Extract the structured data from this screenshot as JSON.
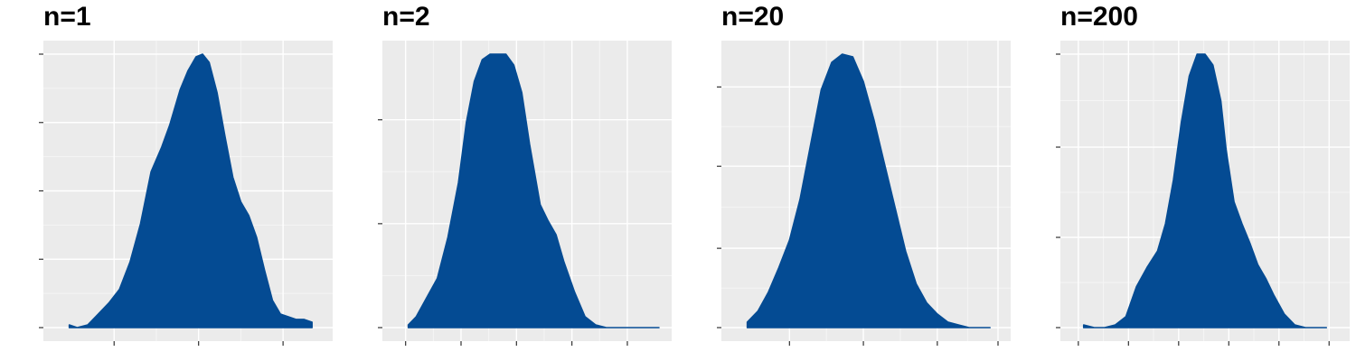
{
  "colors": {
    "fill": "#044b93",
    "panel_background": "#ebebeb",
    "grid_major": "#ffffff",
    "grid_minor": "#f5f5f5",
    "tick": "#333333"
  },
  "chart_data": [
    {
      "type": "area",
      "title": "n=1",
      "tick_labels_printed": false,
      "grid": true,
      "xlim": [
        0,
        1
      ],
      "ylim": [
        0,
        1
      ],
      "x_ticks": [
        0.22,
        0.54,
        0.86
      ],
      "y_ticks": [
        0.0,
        0.25,
        0.5,
        0.75,
        1.0
      ],
      "x": [
        0.05,
        0.08,
        0.12,
        0.16,
        0.2,
        0.24,
        0.28,
        0.32,
        0.36,
        0.4,
        0.43,
        0.47,
        0.5,
        0.53,
        0.555,
        0.58,
        0.61,
        0.64,
        0.67,
        0.7,
        0.73,
        0.76,
        0.79,
        0.82,
        0.85,
        0.88,
        0.91,
        0.94,
        0.97
      ],
      "y": [
        0.01,
        0.0,
        0.01,
        0.05,
        0.09,
        0.14,
        0.24,
        0.38,
        0.57,
        0.66,
        0.74,
        0.87,
        0.94,
        0.99,
        1.0,
        0.97,
        0.86,
        0.7,
        0.55,
        0.46,
        0.41,
        0.33,
        0.21,
        0.1,
        0.05,
        0.04,
        0.03,
        0.03,
        0.02
      ]
    },
    {
      "type": "area",
      "title": "n=2",
      "tick_labels_printed": false,
      "grid": true,
      "xlim": [
        0,
        1
      ],
      "ylim": [
        0,
        1
      ],
      "x_ticks": [
        0.04,
        0.25,
        0.46,
        0.67,
        0.88
      ],
      "y_ticks": [
        0.0,
        0.38,
        0.76
      ],
      "x": [
        0.05,
        0.08,
        0.12,
        0.16,
        0.2,
        0.24,
        0.27,
        0.3,
        0.33,
        0.36,
        0.38,
        0.42,
        0.45,
        0.48,
        0.51,
        0.55,
        0.58,
        0.61,
        0.64,
        0.68,
        0.72,
        0.76,
        0.8,
        0.84,
        0.88,
        0.92,
        0.96,
        1.0
      ],
      "y": [
        0.01,
        0.04,
        0.11,
        0.18,
        0.33,
        0.53,
        0.75,
        0.9,
        0.98,
        1.0,
        1.0,
        1.0,
        0.96,
        0.86,
        0.67,
        0.45,
        0.39,
        0.34,
        0.24,
        0.13,
        0.04,
        0.01,
        0.0,
        0.0,
        0.0,
        0.0,
        0.0,
        0.0
      ]
    },
    {
      "type": "area",
      "title": "n=20",
      "tick_labels_printed": false,
      "grid": true,
      "xlim": [
        0,
        1
      ],
      "ylim": [
        0,
        1
      ],
      "x_ticks": [
        0.21,
        0.49,
        0.77,
        1.0
      ],
      "y_ticks": [
        0.0,
        0.29,
        0.59,
        0.88
      ],
      "x": [
        0.05,
        0.09,
        0.13,
        0.17,
        0.21,
        0.25,
        0.29,
        0.33,
        0.37,
        0.41,
        0.45,
        0.49,
        0.53,
        0.57,
        0.61,
        0.65,
        0.69,
        0.73,
        0.77,
        0.81,
        0.85,
        0.89,
        0.93,
        0.97
      ],
      "y": [
        0.02,
        0.06,
        0.13,
        0.22,
        0.32,
        0.47,
        0.67,
        0.87,
        0.97,
        1.0,
        0.99,
        0.9,
        0.76,
        0.6,
        0.44,
        0.28,
        0.16,
        0.09,
        0.05,
        0.02,
        0.01,
        0.0,
        0.0,
        0.0
      ]
    },
    {
      "type": "area",
      "title": "n=200",
      "tick_labels_printed": false,
      "grid": true,
      "xlim": [
        0,
        1
      ],
      "ylim": [
        0,
        1
      ],
      "x_ticks": [
        0.02,
        0.21,
        0.4,
        0.59,
        0.78,
        0.97
      ],
      "y_ticks": [
        0.0,
        0.33,
        0.66,
        1.0
      ],
      "x": [
        0.04,
        0.08,
        0.12,
        0.16,
        0.2,
        0.24,
        0.28,
        0.32,
        0.35,
        0.38,
        0.41,
        0.44,
        0.47,
        0.5,
        0.53,
        0.56,
        0.58,
        0.61,
        0.64,
        0.67,
        0.7,
        0.73,
        0.76,
        0.8,
        0.84,
        0.88,
        0.92,
        0.96
      ],
      "y": [
        0.01,
        0.0,
        0.0,
        0.01,
        0.04,
        0.15,
        0.22,
        0.28,
        0.38,
        0.54,
        0.75,
        0.92,
        1.0,
        1.0,
        0.96,
        0.83,
        0.65,
        0.46,
        0.38,
        0.31,
        0.23,
        0.18,
        0.12,
        0.05,
        0.01,
        0.0,
        0.0,
        0.0
      ]
    }
  ]
}
